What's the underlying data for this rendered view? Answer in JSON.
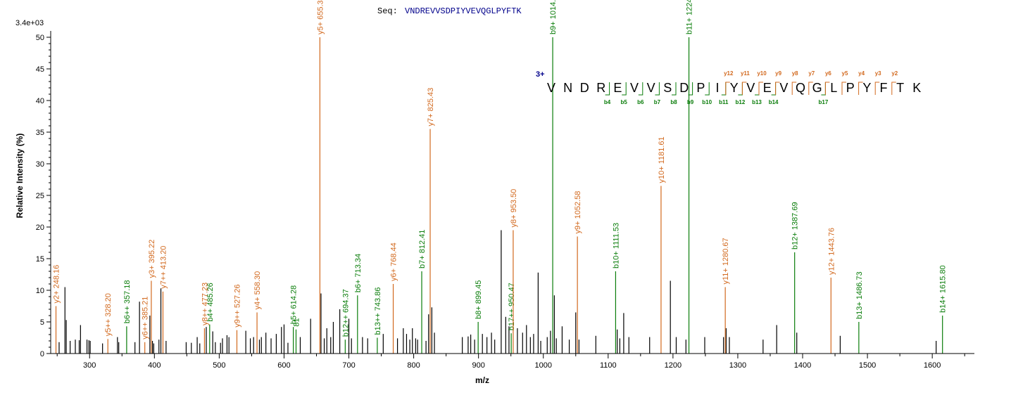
{
  "chart_data": {
    "type": "bar",
    "title_prefix": "Seq:",
    "sequence": "VNDREVVSDPIYVEVQGLPYFTK",
    "scale_label": "3.4e+03",
    "xlabel": "m/z",
    "ylabel": "Relative Intensity (%)",
    "xlim": [
      240,
      1665
    ],
    "ylim": [
      0,
      51
    ],
    "xticks": [
      300,
      400,
      500,
      600,
      700,
      800,
      900,
      1000,
      1100,
      1200,
      1300,
      1400,
      1500,
      1600
    ],
    "yticks": [
      0,
      5,
      10,
      15,
      20,
      25,
      30,
      35,
      40,
      45,
      50
    ],
    "colors": {
      "y_ion": "#d2691e",
      "b_ion": "#0a7d0a",
      "unassigned": "#000000",
      "sequence_title": "#00008b"
    },
    "charge_label": "3+",
    "y_ion_markers": [
      "y12",
      "y11",
      "y10",
      "y9",
      "y8",
      "y7",
      "y6",
      "y5",
      "y4",
      "y3",
      "y2"
    ],
    "b_ion_markers": [
      "b4",
      "b5",
      "b6",
      "b7",
      "b8",
      "b9",
      "b10",
      "b11",
      "b12",
      "b13",
      "b14",
      "b17"
    ],
    "annotated_peaks": [
      {
        "label": "y2+ 248.16",
        "mz": 248.16,
        "intensity": 7.5,
        "ion": "y"
      },
      {
        "label": "y5++ 328.20",
        "mz": 328.2,
        "intensity": 2.3,
        "ion": "y"
      },
      {
        "label": "b6++ 357.18",
        "mz": 357.18,
        "intensity": 4.3,
        "ion": "b"
      },
      {
        "label": "y6++ 385.21",
        "mz": 385.21,
        "intensity": 1.8,
        "ion": "y"
      },
      {
        "label": "y3+ 395.22",
        "mz": 395.22,
        "intensity": 11.5,
        "ion": "y"
      },
      {
        "label": "y7++ 413.20",
        "mz": 413.2,
        "intensity": 9.8,
        "ion": "y"
      },
      {
        "label": "y8++ 477.23",
        "mz": 477.23,
        "intensity": 4.0,
        "ion": "y"
      },
      {
        "label": "b4+ 485.26",
        "mz": 485.26,
        "intensity": 4.6,
        "ion": "b"
      },
      {
        "label": "y9++ 527.26",
        "mz": 527.26,
        "intensity": 3.7,
        "ion": "y"
      },
      {
        "label": "y4+ 558.30",
        "mz": 558.3,
        "intensity": 6.5,
        "ion": "y"
      },
      {
        "label": "b5+ 614.28",
        "mz": 614.28,
        "intensity": 4.2,
        "ion": "b"
      },
      {
        "label": "81",
        "mz": 618.5,
        "intensity": 3.8,
        "ion": "b"
      },
      {
        "label": "y5+ 655.3",
        "mz": 655.3,
        "intensity": 50.0,
        "ion": "y"
      },
      {
        "label": "b12++ 694.37",
        "mz": 694.37,
        "intensity": 2.2,
        "ion": "b"
      },
      {
        "label": "b6+ 713.34",
        "mz": 713.34,
        "intensity": 9.2,
        "ion": "b"
      },
      {
        "label": "b13++ 743.86",
        "mz": 743.86,
        "intensity": 2.5,
        "ion": "b"
      },
      {
        "label": "y6+ 768.44",
        "mz": 768.44,
        "intensity": 11.0,
        "ion": "y"
      },
      {
        "label": "b7+ 812.41",
        "mz": 812.41,
        "intensity": 13.0,
        "ion": "b"
      },
      {
        "label": "y7+ 825.43",
        "mz": 825.43,
        "intensity": 35.5,
        "ion": "y"
      },
      {
        "label": "b8+ 899.45",
        "mz": 899.45,
        "intensity": 5.0,
        "ion": "b"
      },
      {
        "label": "b17++ 950.47",
        "mz": 950.47,
        "intensity": 3.2,
        "ion": "b"
      },
      {
        "label": "y8+ 953.50",
        "mz": 953.5,
        "intensity": 19.5,
        "ion": "y"
      },
      {
        "label": "b9+ 1014.47",
        "mz": 1014.47,
        "intensity": 50.0,
        "ion": "b"
      },
      {
        "label": "y9+ 1052.58",
        "mz": 1052.58,
        "intensity": 18.5,
        "ion": "y"
      },
      {
        "label": "b10+ 1111.53",
        "mz": 1111.53,
        "intensity": 13.0,
        "ion": "b"
      },
      {
        "label": "y10+ 1181.61",
        "mz": 1181.61,
        "intensity": 26.5,
        "ion": "y"
      },
      {
        "label": "b11+ 1224.62",
        "mz": 1224.62,
        "intensity": 50.0,
        "ion": "b"
      },
      {
        "label": "y11+ 1280.67",
        "mz": 1280.67,
        "intensity": 10.5,
        "ion": "y"
      },
      {
        "label": "b12+ 1387.69",
        "mz": 1387.69,
        "intensity": 16.0,
        "ion": "b"
      },
      {
        "label": "y12+ 1443.76",
        "mz": 1443.76,
        "intensity": 12.0,
        "ion": "y"
      },
      {
        "label": "b13+ 1486.73",
        "mz": 1486.73,
        "intensity": 5.0,
        "ion": "b"
      },
      {
        "label": "b14+ 1615.80",
        "mz": 1615.8,
        "intensity": 6.0,
        "ion": "b"
      }
    ],
    "unassigned_peaks": [
      {
        "mz": 253,
        "intensity": 1.8
      },
      {
        "mz": 262,
        "intensity": 10.5
      },
      {
        "mz": 264,
        "intensity": 5.3
      },
      {
        "mz": 270,
        "intensity": 2.0
      },
      {
        "mz": 278,
        "intensity": 2.2
      },
      {
        "mz": 284,
        "intensity": 2.1
      },
      {
        "mz": 286,
        "intensity": 4.5
      },
      {
        "mz": 296,
        "intensity": 2.2
      },
      {
        "mz": 299,
        "intensity": 2.1
      },
      {
        "mz": 301,
        "intensity": 2.0
      },
      {
        "mz": 320,
        "intensity": 1.6
      },
      {
        "mz": 343,
        "intensity": 2.6
      },
      {
        "mz": 345,
        "intensity": 1.8
      },
      {
        "mz": 370,
        "intensity": 1.8
      },
      {
        "mz": 377,
        "intensity": 8.2
      },
      {
        "mz": 393,
        "intensity": 6.0
      },
      {
        "mz": 397,
        "intensity": 2.0
      },
      {
        "mz": 399,
        "intensity": 1.6
      },
      {
        "mz": 407,
        "intensity": 2.2
      },
      {
        "mz": 410,
        "intensity": 10.3
      },
      {
        "mz": 418,
        "intensity": 2.0
      },
      {
        "mz": 449,
        "intensity": 1.8
      },
      {
        "mz": 457,
        "intensity": 1.7
      },
      {
        "mz": 466,
        "intensity": 2.6
      },
      {
        "mz": 470,
        "intensity": 1.6
      },
      {
        "mz": 480,
        "intensity": 4.2
      },
      {
        "mz": 490,
        "intensity": 3.5
      },
      {
        "mz": 494,
        "intensity": 1.8
      },
      {
        "mz": 502,
        "intensity": 1.7
      },
      {
        "mz": 505,
        "intensity": 2.4
      },
      {
        "mz": 512,
        "intensity": 2.9
      },
      {
        "mz": 515,
        "intensity": 2.6
      },
      {
        "mz": 541,
        "intensity": 3.6
      },
      {
        "mz": 548,
        "intensity": 2.4
      },
      {
        "mz": 553,
        "intensity": 2.6
      },
      {
        "mz": 562,
        "intensity": 2.2
      },
      {
        "mz": 565,
        "intensity": 2.6
      },
      {
        "mz": 572,
        "intensity": 3.3
      },
      {
        "mz": 580,
        "intensity": 2.4
      },
      {
        "mz": 588,
        "intensity": 3.1
      },
      {
        "mz": 596,
        "intensity": 4.2
      },
      {
        "mz": 600,
        "intensity": 4.6
      },
      {
        "mz": 606,
        "intensity": 1.7
      },
      {
        "mz": 625,
        "intensity": 2.6
      },
      {
        "mz": 641,
        "intensity": 5.5
      },
      {
        "mz": 657,
        "intensity": 9.5
      },
      {
        "mz": 662,
        "intensity": 2.4
      },
      {
        "mz": 666,
        "intensity": 4.0
      },
      {
        "mz": 672,
        "intensity": 2.6
      },
      {
        "mz": 676,
        "intensity": 5.0
      },
      {
        "mz": 686,
        "intensity": 7.0
      },
      {
        "mz": 700,
        "intensity": 5.5
      },
      {
        "mz": 704,
        "intensity": 2.4
      },
      {
        "mz": 721,
        "intensity": 2.6
      },
      {
        "mz": 729,
        "intensity": 2.4
      },
      {
        "mz": 753,
        "intensity": 3.1
      },
      {
        "mz": 775,
        "intensity": 2.4
      },
      {
        "mz": 784,
        "intensity": 4.0
      },
      {
        "mz": 789,
        "intensity": 3.1
      },
      {
        "mz": 794,
        "intensity": 2.2
      },
      {
        "mz": 798,
        "intensity": 4.0
      },
      {
        "mz": 803,
        "intensity": 2.4
      },
      {
        "mz": 806,
        "intensity": 2.2
      },
      {
        "mz": 819,
        "intensity": 2.0
      },
      {
        "mz": 823,
        "intensity": 6.2
      },
      {
        "mz": 828,
        "intensity": 7.3
      },
      {
        "mz": 832,
        "intensity": 3.3
      },
      {
        "mz": 875,
        "intensity": 2.6
      },
      {
        "mz": 884,
        "intensity": 2.7
      },
      {
        "mz": 888,
        "intensity": 3.0
      },
      {
        "mz": 894,
        "intensity": 2.2
      },
      {
        "mz": 906,
        "intensity": 3.1
      },
      {
        "mz": 913,
        "intensity": 2.6
      },
      {
        "mz": 920,
        "intensity": 3.3
      },
      {
        "mz": 925,
        "intensity": 2.2
      },
      {
        "mz": 935,
        "intensity": 19.5
      },
      {
        "mz": 942,
        "intensity": 5.8
      },
      {
        "mz": 947,
        "intensity": 4.3
      },
      {
        "mz": 960,
        "intensity": 4.0
      },
      {
        "mz": 968,
        "intensity": 3.3
      },
      {
        "mz": 974,
        "intensity": 4.5
      },
      {
        "mz": 980,
        "intensity": 2.6
      },
      {
        "mz": 985,
        "intensity": 3.1
      },
      {
        "mz": 992,
        "intensity": 12.8
      },
      {
        "mz": 996,
        "intensity": 2.0
      },
      {
        "mz": 1006,
        "intensity": 2.6
      },
      {
        "mz": 1011,
        "intensity": 3.6
      },
      {
        "mz": 1017,
        "intensity": 9.2
      },
      {
        "mz": 1020,
        "intensity": 2.4
      },
      {
        "mz": 1029,
        "intensity": 4.3
      },
      {
        "mz": 1040,
        "intensity": 2.2
      },
      {
        "mz": 1050,
        "intensity": 6.5
      },
      {
        "mz": 1055,
        "intensity": 2.2
      },
      {
        "mz": 1081,
        "intensity": 2.8
      },
      {
        "mz": 1114,
        "intensity": 3.8
      },
      {
        "mz": 1118,
        "intensity": 2.4
      },
      {
        "mz": 1124,
        "intensity": 6.4
      },
      {
        "mz": 1132,
        "intensity": 2.6
      },
      {
        "mz": 1164,
        "intensity": 2.6
      },
      {
        "mz": 1196,
        "intensity": 11.5
      },
      {
        "mz": 1205,
        "intensity": 2.6
      },
      {
        "mz": 1220,
        "intensity": 2.2
      },
      {
        "mz": 1249,
        "intensity": 2.6
      },
      {
        "mz": 1278,
        "intensity": 2.6
      },
      {
        "mz": 1282,
        "intensity": 4.0
      },
      {
        "mz": 1287,
        "intensity": 2.6
      },
      {
        "mz": 1339,
        "intensity": 2.2
      },
      {
        "mz": 1360,
        "intensity": 4.5
      },
      {
        "mz": 1391,
        "intensity": 3.3
      },
      {
        "mz": 1458,
        "intensity": 2.8
      },
      {
        "mz": 1606,
        "intensity": 2.0
      }
    ]
  }
}
